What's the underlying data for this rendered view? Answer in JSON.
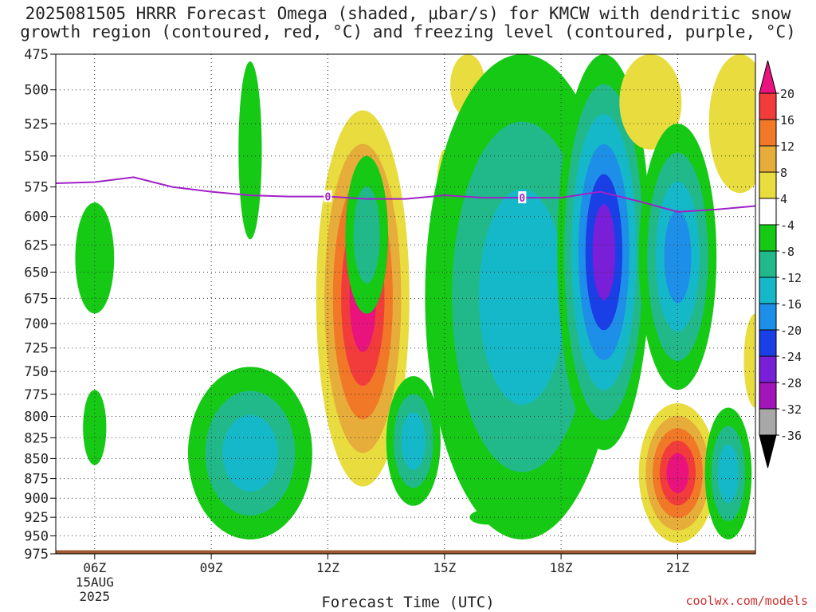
{
  "title_line1": "2025081505 HRRR Forecast Omega (shaded, μbar/s) for KMCW with dendritic snow",
  "title_line2": "growth region (contoured, red, °C) and freezing level (contoured, purple, °C)",
  "credit": "coolwx.com/models",
  "chart_data": {
    "type": "heatmap",
    "xlabel": "Forecast Time (UTC)",
    "ylabel": "",
    "x_ticks": [
      {
        "hour": 6,
        "label": "06Z",
        "sub1": "15AUG",
        "sub2": "2025"
      },
      {
        "hour": 9,
        "label": "09Z"
      },
      {
        "hour": 12,
        "label": "12Z"
      },
      {
        "hour": 15,
        "label": "15Z"
      },
      {
        "hour": 18,
        "label": "18Z"
      },
      {
        "hour": 21,
        "label": "21Z"
      }
    ],
    "xlim": [
      5,
      23
    ],
    "y_levels_mb": [
      475,
      500,
      525,
      550,
      575,
      600,
      625,
      650,
      675,
      700,
      725,
      750,
      775,
      800,
      825,
      850,
      875,
      900,
      925,
      950,
      975
    ],
    "y_axis": "pressure (mb), inverted, log scale",
    "grid": true,
    "colorbar": {
      "labels": [
        "20",
        "16",
        "12",
        "8",
        "4",
        "-4",
        "-8",
        "-12",
        "-16",
        "-20",
        "-24",
        "-28",
        "-32",
        "-36"
      ],
      "bins": [
        {
          "range": ">20",
          "color": "#e8137c"
        },
        {
          "range": "16 to 20",
          "color": "#f23c3c"
        },
        {
          "range": "12 to 16",
          "color": "#f07826"
        },
        {
          "range": "8 to 12",
          "color": "#e6ad3a"
        },
        {
          "range": "4 to 8",
          "color": "#e9dc3f"
        },
        {
          "range": "-4 to 4",
          "color": "#ffffff"
        },
        {
          "range": "-8 to -4",
          "color": "#15c915"
        },
        {
          "range": "-12 to -8",
          "color": "#22b98a"
        },
        {
          "range": "-16 to -12",
          "color": "#15b8c9"
        },
        {
          "range": "-20 to -16",
          "color": "#1e8fe8"
        },
        {
          "range": "-24 to -20",
          "color": "#1a3fe6"
        },
        {
          "range": "-28 to -24",
          "color": "#7a1fd8"
        },
        {
          "range": "-32 to -28",
          "color": "#a215b8"
        },
        {
          "range": "-36 to -32",
          "color": "#a8a8a8"
        },
        {
          "range": "<-36",
          "color": "#000000"
        }
      ]
    },
    "freezing_level": {
      "label": "0",
      "color": "#a020c8",
      "hours": [
        5,
        6,
        7,
        8,
        9,
        10,
        11,
        12,
        13,
        14,
        15,
        16,
        17,
        18,
        19,
        20,
        21,
        22,
        23
      ],
      "pressure_mb": [
        572,
        571,
        567,
        575,
        579,
        582,
        583,
        583,
        585,
        585,
        582,
        584,
        584,
        584,
        579,
        587,
        596,
        594,
        591
      ],
      "label_hours": [
        12,
        17
      ]
    },
    "omega_features": [
      {
        "hour": 6.0,
        "p_top": 588,
        "p_bottom": 690,
        "value": -6,
        "halfwidth_hours": 0.5
      },
      {
        "hour": 6.0,
        "p_top": 770,
        "p_bottom": 858,
        "value": -6,
        "halfwidth_hours": 0.3
      },
      {
        "hour": 10.0,
        "p_top": 480,
        "p_bottom": 620,
        "value": -6,
        "halfwidth_hours": 0.3
      },
      {
        "hour": 10.0,
        "p_top": 745,
        "p_bottom": 955,
        "value": -14,
        "halfwidth_hours": 1.6
      },
      {
        "hour": 12.9,
        "p_top": 515,
        "p_bottom": 885,
        "value": 22,
        "halfwidth_hours": 1.2
      },
      {
        "hour": 13.0,
        "p_top": 550,
        "p_bottom": 690,
        "value": -10,
        "halfwidth_hours": 0.55
      },
      {
        "hour": 14.2,
        "p_top": 755,
        "p_bottom": 910,
        "value": -14,
        "halfwidth_hours": 0.7
      },
      {
        "hour": 15.0,
        "p_top": 545,
        "p_bottom": 615,
        "value": 5,
        "halfwidth_hours": 0.2
      },
      {
        "hour": 15.6,
        "p_top": 475,
        "p_bottom": 520,
        "value": 5,
        "halfwidth_hours": 0.45
      },
      {
        "hour": 16.1,
        "p_top": 915,
        "p_bottom": 935,
        "value": -6,
        "halfwidth_hours": 0.45
      },
      {
        "hour": 17.0,
        "p_top": 475,
        "p_bottom": 955,
        "value": -13,
        "halfwidth_hours": 2.5
      },
      {
        "hour": 19.1,
        "p_top": 475,
        "p_bottom": 840,
        "value": -26,
        "halfwidth_hours": 1.2
      },
      {
        "hour": 20.3,
        "p_top": 475,
        "p_bottom": 545,
        "value": 6,
        "halfwidth_hours": 0.8
      },
      {
        "hour": 21.0,
        "p_top": 525,
        "p_bottom": 770,
        "value": -18,
        "halfwidth_hours": 1.0
      },
      {
        "hour": 21.0,
        "p_top": 785,
        "p_bottom": 960,
        "value": 22,
        "halfwidth_hours": 1.0
      },
      {
        "hour": 22.3,
        "p_top": 790,
        "p_bottom": 955,
        "value": -14,
        "halfwidth_hours": 0.6
      },
      {
        "hour": 22.6,
        "p_top": 475,
        "p_bottom": 580,
        "value": 6,
        "halfwidth_hours": 0.8
      },
      {
        "hour": 23.0,
        "p_top": 690,
        "p_bottom": 790,
        "value": 6,
        "halfwidth_hours": 0.3
      }
    ],
    "ground": {
      "p_top_mb": 970,
      "color": "#9c5a33"
    }
  }
}
